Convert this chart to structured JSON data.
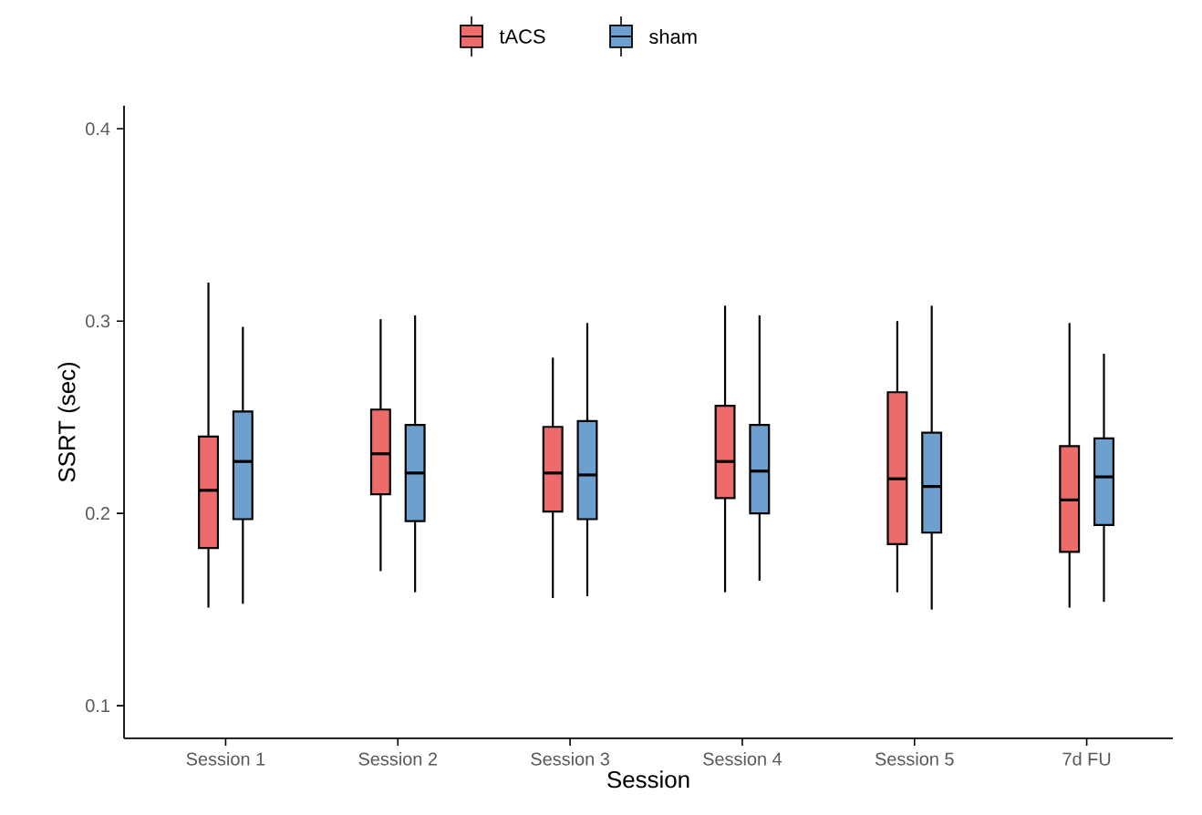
{
  "chart_data": {
    "type": "box",
    "xlabel": "Session",
    "ylabel": "SSRT (sec)",
    "categories": [
      "Session 1",
      "Session 2",
      "Session 3",
      "Session 4",
      "Session 5",
      "7d FU"
    ],
    "ylim": [
      0.083,
      0.412
    ],
    "yticks": [
      0.1,
      0.2,
      0.3,
      0.4
    ],
    "legend": "top",
    "series": [
      {
        "name": "tACS",
        "color": "#ee6b6b",
        "boxes": [
          {
            "low": 0.151,
            "q1": 0.182,
            "median": 0.212,
            "q3": 0.24,
            "high": 0.32
          },
          {
            "low": 0.17,
            "q1": 0.21,
            "median": 0.231,
            "q3": 0.254,
            "high": 0.301
          },
          {
            "low": 0.156,
            "q1": 0.201,
            "median": 0.221,
            "q3": 0.245,
            "high": 0.281
          },
          {
            "low": 0.159,
            "q1": 0.208,
            "median": 0.227,
            "q3": 0.256,
            "high": 0.308
          },
          {
            "low": 0.159,
            "q1": 0.184,
            "median": 0.218,
            "q3": 0.263,
            "high": 0.3
          },
          {
            "low": 0.151,
            "q1": 0.18,
            "median": 0.207,
            "q3": 0.235,
            "high": 0.299
          }
        ]
      },
      {
        "name": "sham",
        "color": "#6d9fcf",
        "boxes": [
          {
            "low": 0.153,
            "q1": 0.197,
            "median": 0.227,
            "q3": 0.253,
            "high": 0.297
          },
          {
            "low": 0.159,
            "q1": 0.196,
            "median": 0.221,
            "q3": 0.246,
            "high": 0.303
          },
          {
            "low": 0.157,
            "q1": 0.197,
            "median": 0.22,
            "q3": 0.248,
            "high": 0.299
          },
          {
            "low": 0.165,
            "q1": 0.2,
            "median": 0.222,
            "q3": 0.246,
            "high": 0.303
          },
          {
            "low": 0.15,
            "q1": 0.19,
            "median": 0.214,
            "q3": 0.242,
            "high": 0.308
          },
          {
            "low": 0.154,
            "q1": 0.194,
            "median": 0.219,
            "q3": 0.239,
            "high": 0.283
          }
        ]
      }
    ]
  }
}
